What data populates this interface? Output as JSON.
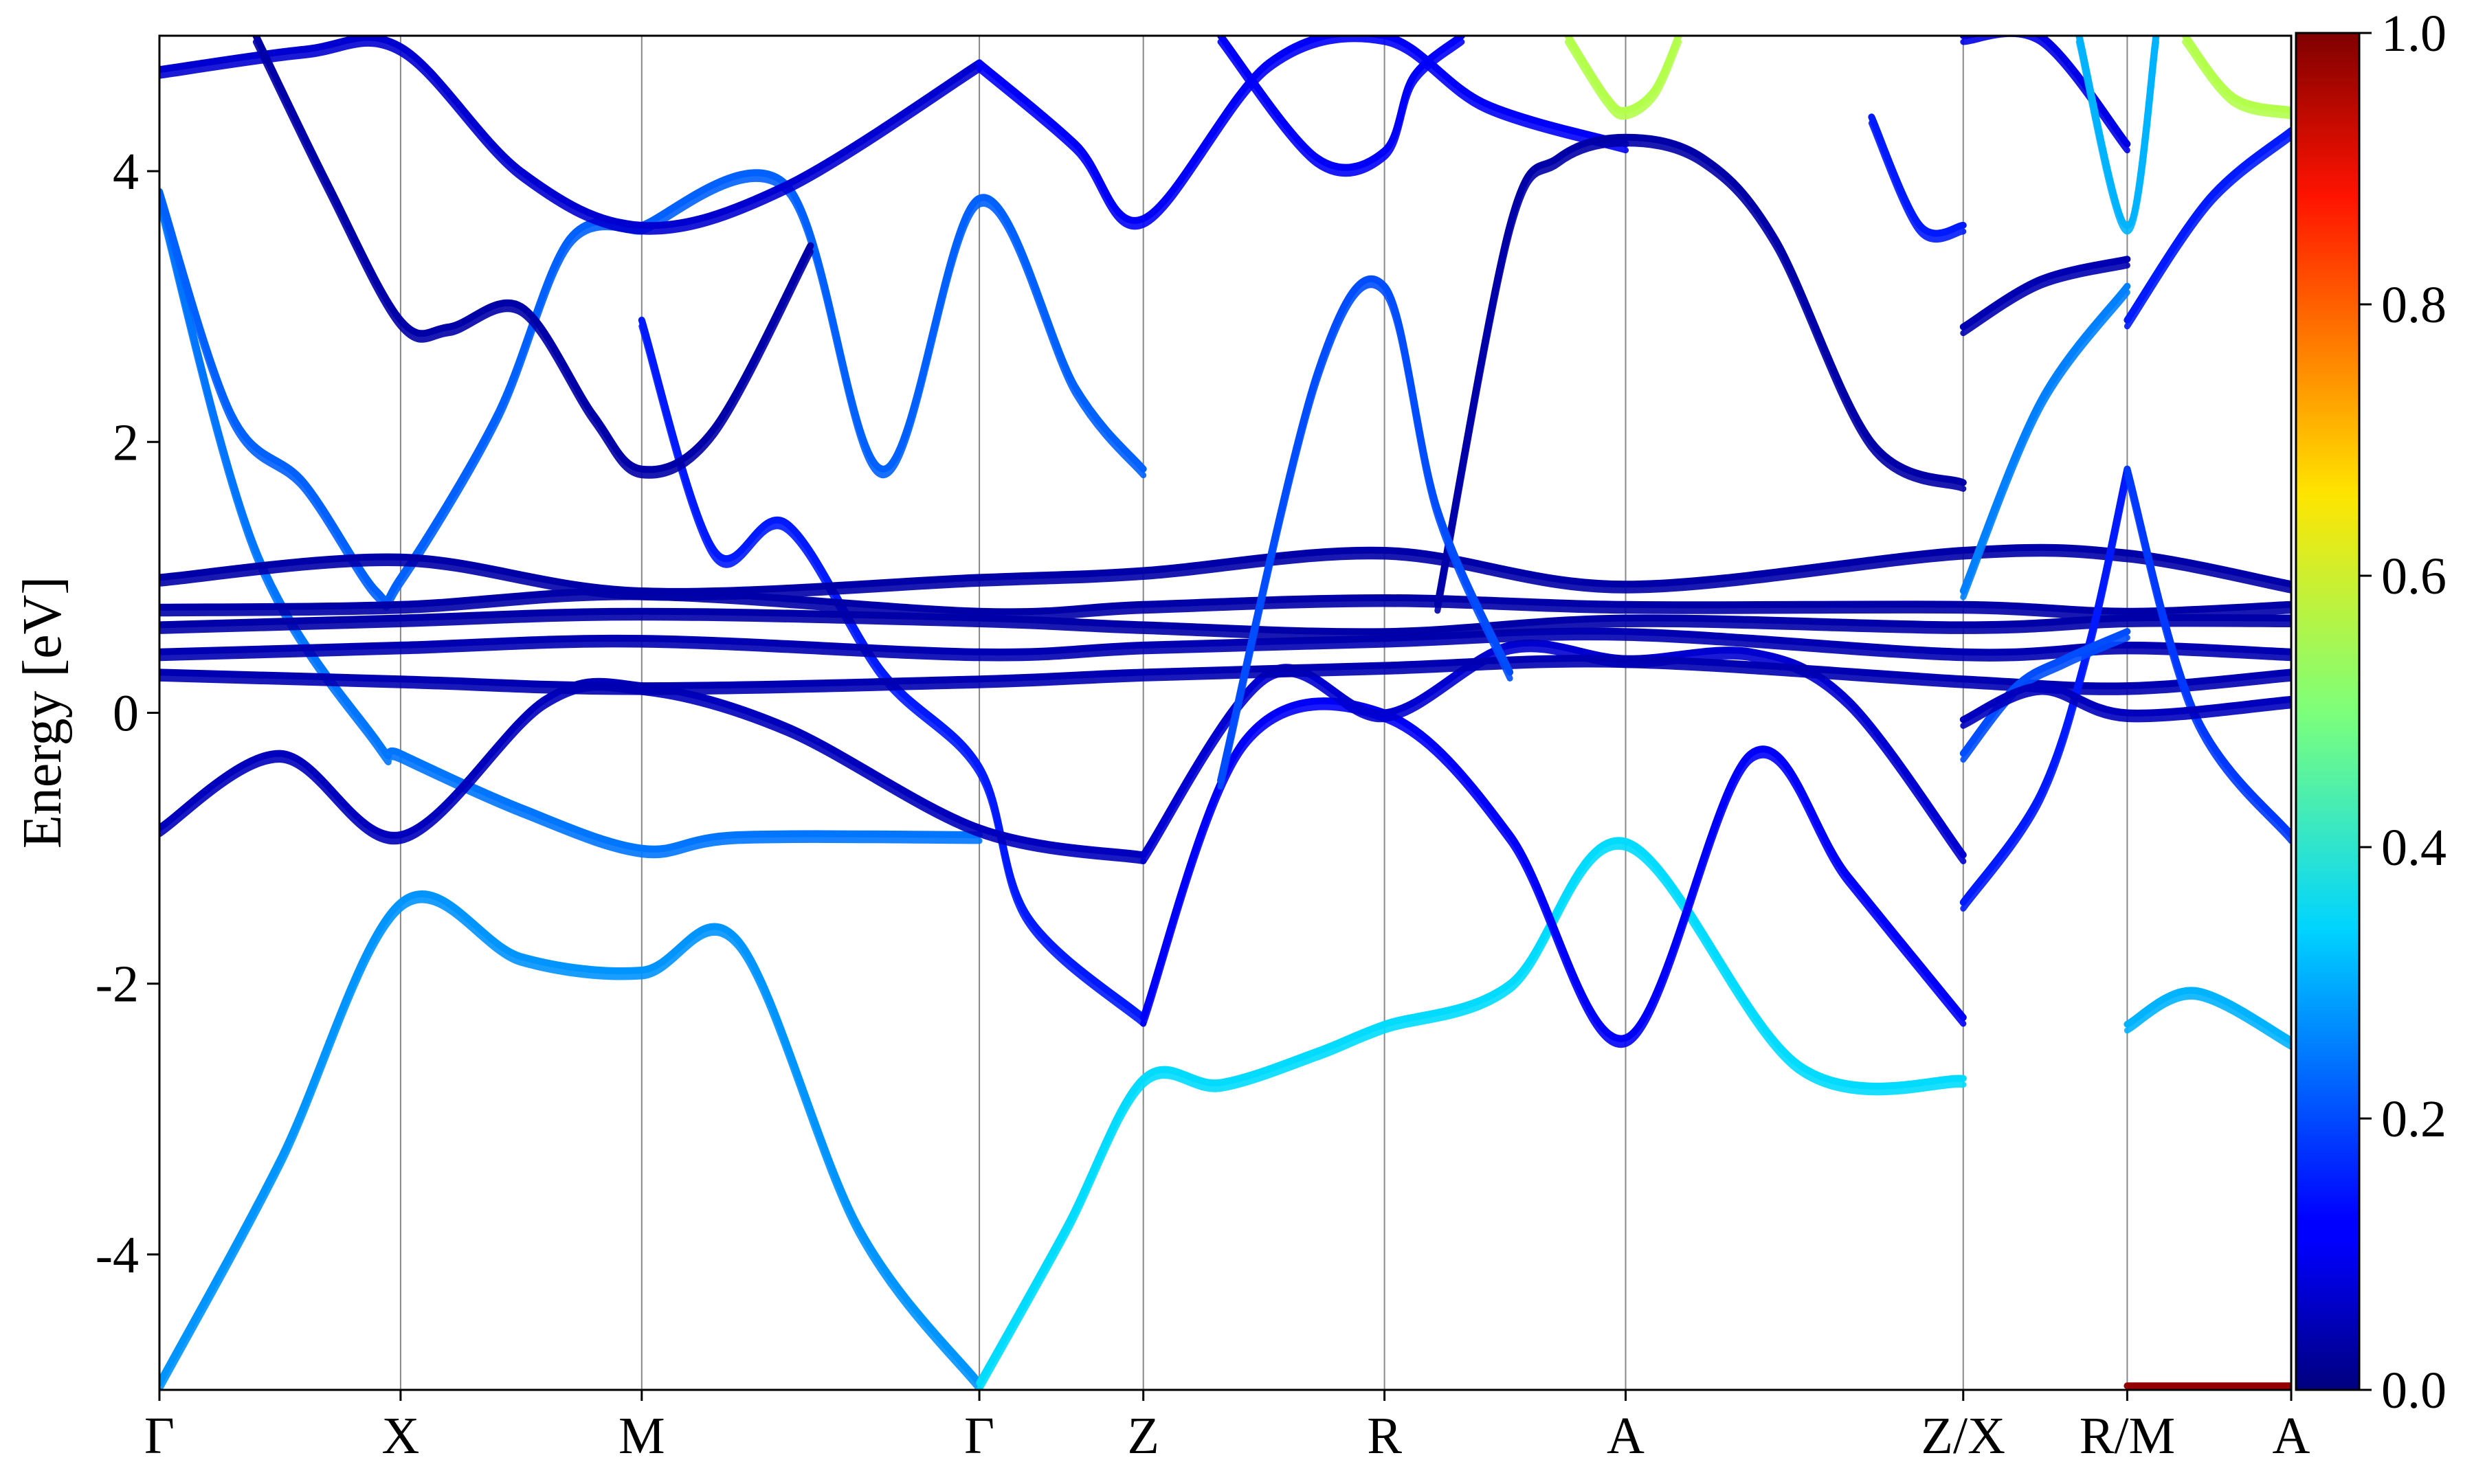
{
  "chart_data": {
    "type": "line",
    "title": "",
    "xlabel": "",
    "ylabel": "Energy [eV]",
    "ylim": [
      -5,
      5
    ],
    "yticks": [
      "-4",
      "-2",
      "0",
      "2",
      "4"
    ],
    "ytick_values": [
      -4,
      -2,
      0,
      2,
      4
    ],
    "grid": "vertical lines at high-symmetry points",
    "legend": "none",
    "kpath": [
      {
        "label": "Γ",
        "x": 0.0
      },
      {
        "label": "X",
        "x": 0.5
      },
      {
        "label": "M",
        "x": 1.0
      },
      {
        "label": "Γ",
        "x": 1.7
      },
      {
        "label": "Z",
        "x": 2.04
      },
      {
        "label": "R",
        "x": 2.54
      },
      {
        "label": "A",
        "x": 3.04
      },
      {
        "label": "Z/X",
        "x": 3.74
      },
      {
        "label": "R/M",
        "x": 4.08
      },
      {
        "label": "A",
        "x": 4.42
      }
    ],
    "colorbar": {
      "colormap": "jet",
      "range": [
        0.0,
        1.0
      ],
      "ticks": [
        "0.0",
        "0.2",
        "0.4",
        "0.6",
        "0.8",
        "1.0"
      ],
      "tick_values": [
        0.0,
        0.2,
        0.4,
        0.6,
        0.8,
        1.0
      ]
    },
    "series": [
      {
        "weight": 0.27,
        "x": [
          0.0,
          0.25,
          0.5,
          0.75,
          1.0,
          1.2,
          1.45,
          1.7
        ],
        "y": [
          -4.95,
          -3.3,
          -1.4,
          -1.8,
          -1.9,
          -1.68,
          -3.8,
          -4.95
        ]
      },
      {
        "weight": 0.34,
        "x": [
          1.7,
          1.88,
          2.04,
          2.2,
          2.4,
          2.54,
          2.8,
          3.04,
          3.4,
          3.74
        ],
        "y": [
          -4.95,
          -3.8,
          -2.7,
          -2.73,
          -2.5,
          -2.3,
          -2.0,
          -0.95,
          -2.6,
          -2.7
        ]
      },
      {
        "weight": 0.3,
        "x": [
          4.08,
          4.22,
          4.42
        ],
        "y": [
          -2.3,
          -2.05,
          -2.42
        ]
      },
      {
        "weight": 0.24,
        "x": [
          0.0,
          0.2,
          0.45,
          0.5,
          0.75,
          1.0,
          1.2,
          1.7
        ],
        "y": [
          3.8,
          1.2,
          -0.2,
          -0.3,
          -0.7,
          -1.0,
          -0.9,
          -0.9
        ]
      },
      {
        "weight": 0.22,
        "x": [
          0.0,
          0.15,
          0.3,
          0.45,
          0.5,
          0.7,
          0.85,
          1.0
        ],
        "y": [
          3.85,
          2.2,
          1.7,
          0.9,
          1.0,
          2.2,
          3.5,
          3.6
        ]
      },
      {
        "weight": 0.22,
        "x": [
          1.0,
          1.3,
          1.5,
          1.7,
          1.9,
          2.04
        ],
        "y": [
          3.6,
          3.9,
          1.8,
          3.8,
          2.4,
          1.8
        ]
      },
      {
        "weight": 0.15,
        "x": [
          1.0,
          1.15,
          1.3,
          1.5,
          1.7,
          1.8,
          2.04
        ],
        "y": [
          2.9,
          1.2,
          1.4,
          0.3,
          -0.4,
          -1.5,
          -2.25
        ]
      },
      {
        "weight": 0.12,
        "x": [
          2.04,
          2.25,
          2.54,
          2.8,
          3.04,
          3.3,
          3.5,
          3.74
        ],
        "y": [
          -2.25,
          -0.2,
          0.0,
          -0.9,
          -2.4,
          -0.3,
          -1.2,
          -2.25
        ]
      },
      {
        "weight": 0.06,
        "x": [
          0.0,
          0.25,
          0.5,
          0.8,
          1.0,
          1.3,
          1.7,
          2.04
        ],
        "y": [
          -0.85,
          -0.3,
          -0.9,
          0.1,
          0.2,
          -0.1,
          -0.85,
          -1.05
        ]
      },
      {
        "weight": 0.08,
        "x": [
          2.04,
          2.3,
          2.54,
          2.8,
          3.04,
          3.3,
          3.5,
          3.74
        ],
        "y": [
          -1.05,
          0.3,
          0.0,
          0.5,
          0.4,
          0.45,
          0.1,
          -1.05
        ]
      },
      {
        "weight": 0.05,
        "x": [
          0.0,
          0.5,
          1.0,
          1.7,
          2.04,
          2.54,
          3.04,
          3.74,
          4.08,
          4.42
        ],
        "y": [
          0.3,
          0.25,
          0.2,
          0.25,
          0.3,
          0.35,
          0.4,
          0.25,
          0.2,
          0.3
        ]
      },
      {
        "weight": 0.05,
        "x": [
          0.0,
          0.5,
          1.0,
          1.7,
          2.04,
          2.54,
          3.04,
          3.74,
          4.08,
          4.42
        ],
        "y": [
          0.45,
          0.5,
          0.55,
          0.45,
          0.5,
          0.55,
          0.6,
          0.45,
          0.5,
          0.45
        ]
      },
      {
        "weight": 0.04,
        "x": [
          0.0,
          0.5,
          1.0,
          1.7,
          2.04,
          2.54,
          3.04,
          3.74,
          4.08,
          4.42
        ],
        "y": [
          0.65,
          0.7,
          0.75,
          0.7,
          0.65,
          0.6,
          0.7,
          0.65,
          0.7,
          0.7
        ]
      },
      {
        "weight": 0.04,
        "x": [
          0.0,
          0.5,
          1.0,
          1.7,
          2.04,
          2.54,
          3.04,
          3.74,
          4.08,
          4.42
        ],
        "y": [
          0.78,
          0.8,
          0.9,
          0.75,
          0.8,
          0.85,
          0.8,
          0.8,
          0.75,
          0.8
        ]
      },
      {
        "weight": 0.04,
        "x": [
          0.0,
          0.5,
          1.0,
          1.7,
          2.04,
          2.54,
          3.04,
          3.74,
          4.08,
          4.42
        ],
        "y": [
          1.0,
          1.15,
          0.9,
          1.0,
          1.05,
          1.2,
          0.95,
          1.2,
          1.18,
          0.95
        ]
      },
      {
        "weight": 0.08,
        "x": [
          0.0,
          0.3,
          0.5,
          0.75,
          1.0,
          1.3,
          1.7
        ],
        "y": [
          4.75,
          4.9,
          4.92,
          4.0,
          3.6,
          3.9,
          4.8
        ]
      },
      {
        "weight": 0.12,
        "x": [
          1.7,
          1.9,
          2.04,
          2.3,
          2.54,
          2.75,
          3.04
        ],
        "y": [
          4.8,
          4.2,
          3.65,
          4.8,
          5.0,
          4.5,
          4.2
        ]
      },
      {
        "weight": 0.04,
        "x": [
          0.2,
          0.35,
          0.5,
          0.6,
          0.75,
          0.9,
          1.0,
          1.15,
          1.35
        ],
        "y": [
          5.0,
          3.9,
          2.9,
          2.85,
          3.0,
          2.2,
          1.8,
          2.1,
          3.45
        ]
      },
      {
        "weight": 0.04,
        "x": [
          2.65,
          2.8,
          2.9,
          3.04,
          3.2,
          3.35,
          3.55,
          3.74
        ],
        "y": [
          0.8,
          3.6,
          4.1,
          4.25,
          4.1,
          3.5,
          2.0,
          1.7
        ]
      },
      {
        "weight": 0.12,
        "x": [
          2.2,
          2.4,
          2.54,
          2.6,
          2.7
        ],
        "y": [
          5.0,
          4.1,
          4.15,
          4.7,
          5.0
        ]
      },
      {
        "weight": 0.2,
        "x": [
          2.2,
          2.4,
          2.54,
          2.65,
          2.8
        ],
        "y": [
          -0.5,
          2.5,
          3.15,
          1.5,
          0.3
        ]
      },
      {
        "weight": 0.55,
        "x": [
          2.92,
          3.0,
          3.04,
          3.1,
          3.15
        ],
        "y": [
          5.0,
          4.55,
          4.45,
          4.6,
          5.0
        ]
      },
      {
        "weight": 0.05,
        "x": [
          3.74,
          3.9,
          4.08
        ],
        "y": [
          2.85,
          3.2,
          3.35
        ]
      },
      {
        "weight": 0.25,
        "x": [
          3.74,
          3.9,
          4.08
        ],
        "y": [
          0.9,
          2.3,
          3.15
        ]
      },
      {
        "weight": 0.15,
        "x": [
          3.74,
          3.9,
          4.0,
          4.08
        ],
        "y": [
          -1.4,
          -0.6,
          0.5,
          1.8
        ]
      },
      {
        "weight": 0.18,
        "x": [
          4.08,
          4.22,
          4.42
        ],
        "y": [
          1.8,
          0.0,
          -0.9
        ]
      },
      {
        "weight": 0.15,
        "x": [
          4.08,
          4.25,
          4.42
        ],
        "y": [
          2.9,
          3.8,
          4.3
        ]
      },
      {
        "weight": 0.55,
        "x": [
          4.2,
          4.3,
          4.42
        ],
        "y": [
          5.0,
          4.55,
          4.45
        ]
      },
      {
        "weight": 0.1,
        "x": [
          3.74,
          3.9,
          4.08
        ],
        "y": [
          5.0,
          5.0,
          4.2
        ]
      },
      {
        "weight": 0.3,
        "x": [
          3.98,
          4.08,
          4.14
        ],
        "y": [
          5.0,
          3.6,
          5.0
        ]
      },
      {
        "weight": 0.15,
        "x": [
          3.55,
          3.65,
          3.74
        ],
        "y": [
          4.4,
          3.6,
          3.6
        ]
      },
      {
        "weight": 0.2,
        "x": [
          3.74,
          3.85,
          3.95,
          4.08
        ],
        "y": [
          -0.3,
          0.2,
          0.4,
          0.6
        ]
      },
      {
        "weight": 0.06,
        "x": [
          3.74,
          3.9,
          4.08,
          4.42
        ],
        "y": [
          -0.05,
          0.2,
          0.0,
          0.1
        ]
      },
      {
        "weight": 0.98,
        "x": [
          4.08,
          4.42
        ],
        "y": [
          -4.97,
          -4.97
        ]
      }
    ]
  }
}
